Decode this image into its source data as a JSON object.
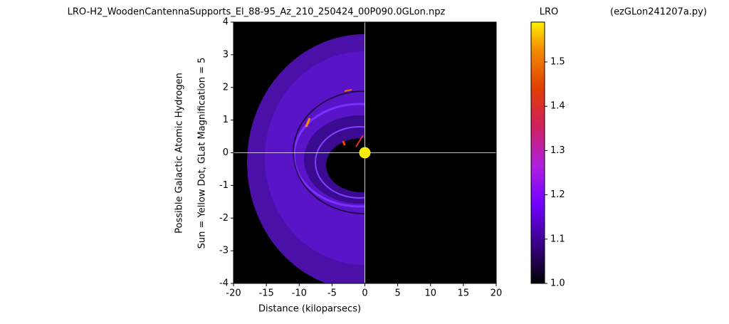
{
  "chart_data": {
    "type": "image",
    "title": "LRO-H2_WoodenCantennaSupports_El_88-95_Az_210_250424_00P090.0GLon.npz",
    "colorbar_title": "LRO",
    "script_name": "(ezGLon241207a.py)",
    "xlabel": "Distance (kiloparsecs)",
    "ylabel": [
      "Possible Galactic Atomic Hydrogen",
      "Sun = Yellow Dot, GLat Magnification = 5"
    ],
    "xlim": [
      -20,
      20
    ],
    "xticks": [
      -20,
      -15,
      -10,
      -5,
      0,
      5,
      10,
      15,
      20
    ],
    "ylim": [
      -4,
      4
    ],
    "yticks": [
      -4,
      -3,
      -2,
      -1,
      0,
      1,
      2,
      3,
      4
    ],
    "sun": {
      "x": 0,
      "y": 0,
      "color": "#ffee00"
    },
    "clim": [
      1.0,
      1.59
    ],
    "cticks": [
      {
        "value": 1.0,
        "label": "1.0"
      },
      1.1,
      1.2,
      1.3,
      1.4,
      1.5
    ]
  }
}
